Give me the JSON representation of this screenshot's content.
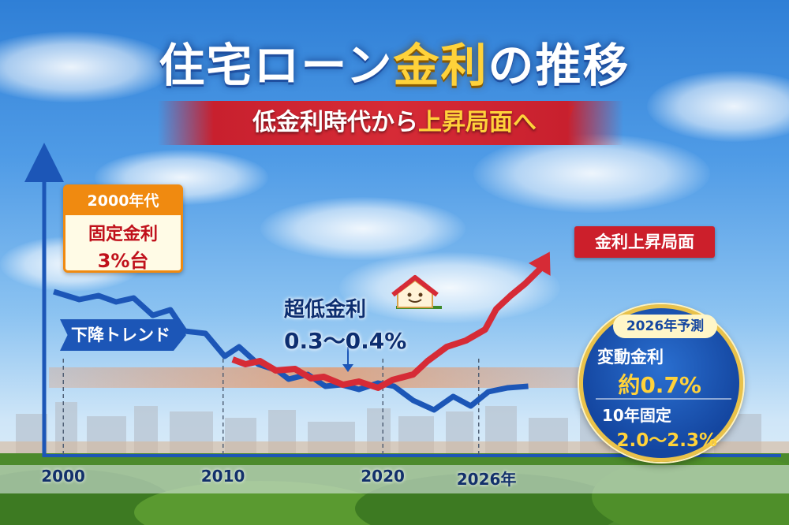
{
  "title": {
    "part1": "住宅ローン",
    "part2": "金利",
    "part3": "の推移"
  },
  "subtitle": {
    "part1": "低金利時代から",
    "part2": "上昇局面へ"
  },
  "annotations": {
    "era_2000s": {
      "header": "2000年代",
      "line1": "固定金利",
      "line2": "3%台"
    },
    "downtrend": "下降トレンド",
    "ultra_low": {
      "label": "超低金利",
      "value": "0.3〜0.4%"
    },
    "rising_phase": "金利上昇局面",
    "forecast": {
      "header": "2026年予測",
      "variable_label": "変動金利",
      "variable_value": "約0.7%",
      "fixed_label": "10年固定",
      "fixed_value": "2.0〜2.3%"
    }
  },
  "colors": {
    "line_blue": "#1c56b7",
    "line_red": "#d62b36",
    "band": "#f28a4a",
    "accent_gold": "#ffd23a"
  },
  "icons": {
    "house": "house-smile-icon",
    "arrow": "rising-arrow-icon"
  },
  "chart_data": {
    "type": "line",
    "xlabel": "",
    "ylabel": "",
    "x_ticks": [
      2000,
      2010,
      2020,
      "2026年"
    ],
    "xlim": [
      1999,
      2030
    ],
    "grid": false,
    "series": [
      {
        "x": [
          1999.4,
          2001,
          2002.2,
          2003.3,
          2004.4,
          2005.6,
          2006.7,
          2007.6,
          2008.9,
          2010.1,
          2011,
          2012.2,
          2013.4,
          2014.1,
          2015.3,
          2016.4,
          2017.4,
          2018.5,
          2019.7,
          2020.7,
          2021.9,
          2023.2,
          2024.4,
          2025.5,
          2026.6,
          2027.8,
          2029.1
        ],
        "y": [
          370,
          380,
          375,
          383,
          378,
          400,
          393,
          420,
          423,
          452,
          440,
          462,
          470,
          481,
          475,
          490,
          488,
          494,
          486,
          490,
          508,
          520,
          503,
          515,
          497,
          492,
          490
        ]
      },
      {
        "x": [
          2010.6,
          2011.4,
          2012.3,
          2013.3,
          2014.5,
          2015.5,
          2016.3,
          2017.5,
          2018.5,
          2019.7,
          2020.6,
          2021.9,
          2022.8,
          2024,
          2025.2,
          2026.4,
          2027.1,
          2028,
          2028.9,
          2029.8,
          2030.2
        ],
        "y": [
          456,
          462,
          458,
          470,
          468,
          480,
          478,
          488,
          484,
          492,
          482,
          475,
          458,
          440,
          432,
          418,
          392,
          375,
          360,
          342,
          328
        ]
      }
    ]
  }
}
